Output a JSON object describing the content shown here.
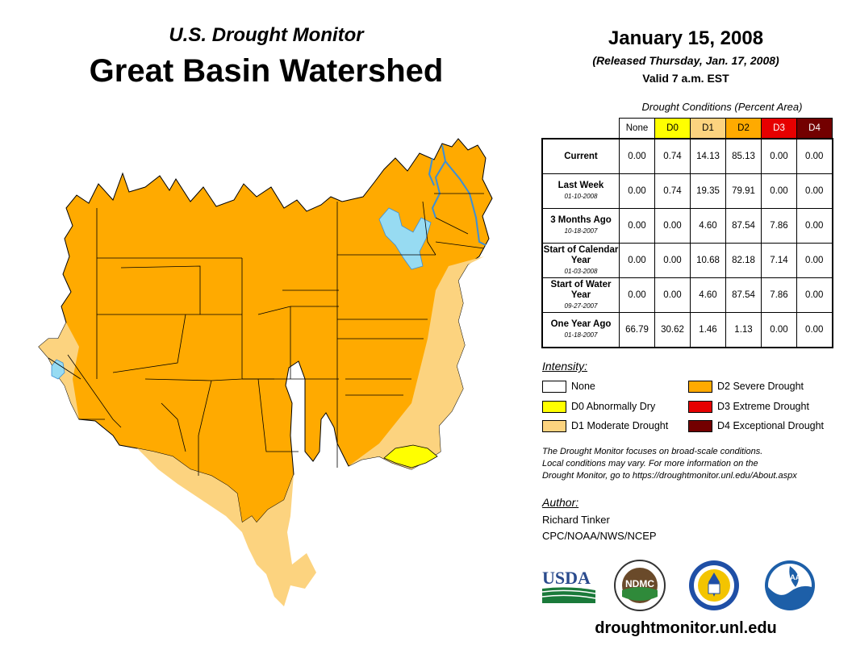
{
  "header": {
    "subtitle": "U.S. Drought Monitor",
    "title": "Great Basin Watershed",
    "date": "January 15, 2008",
    "released": "(Released Thursday, Jan. 17, 2008)",
    "valid": "Valid 7 a.m. EST"
  },
  "table": {
    "caption": "Drought Conditions (Percent Area)",
    "columns": [
      "None",
      "D0",
      "D1",
      "D2",
      "D3",
      "D4"
    ],
    "column_colors": [
      "#ffffff",
      "#ffff00",
      "#fcd37f",
      "#ffaa00",
      "#e60000",
      "#730000"
    ],
    "rows": [
      {
        "label": "Current",
        "date": "",
        "values": [
          "0.00",
          "0.74",
          "14.13",
          "85.13",
          "0.00",
          "0.00"
        ]
      },
      {
        "label": "Last Week",
        "date": "01-10-2008",
        "values": [
          "0.00",
          "0.74",
          "19.35",
          "79.91",
          "0.00",
          "0.00"
        ]
      },
      {
        "label": "3 Months Ago",
        "date": "10-18-2007",
        "values": [
          "0.00",
          "0.00",
          "4.60",
          "87.54",
          "7.86",
          "0.00"
        ]
      },
      {
        "label": "Start of Calendar Year",
        "date": "01-03-2008",
        "values": [
          "0.00",
          "0.00",
          "10.68",
          "82.18",
          "7.14",
          "0.00"
        ]
      },
      {
        "label": "Start of Water Year",
        "date": "09-27-2007",
        "values": [
          "0.00",
          "0.00",
          "4.60",
          "87.54",
          "7.86",
          "0.00"
        ]
      },
      {
        "label": "One Year Ago",
        "date": "01-18-2007",
        "values": [
          "66.79",
          "30.62",
          "1.46",
          "1.13",
          "0.00",
          "0.00"
        ]
      }
    ]
  },
  "legend": {
    "title": "Intensity:",
    "items": [
      {
        "label": "None",
        "color": "#ffffff"
      },
      {
        "label": "D0 Abnormally Dry",
        "color": "#ffff00"
      },
      {
        "label": "D1 Moderate Drought",
        "color": "#fcd37f"
      },
      {
        "label": "D2 Severe Drought",
        "color": "#ffaa00"
      },
      {
        "label": "D3 Extreme Drought",
        "color": "#e60000"
      },
      {
        "label": "D4 Exceptional Drought",
        "color": "#730000"
      }
    ]
  },
  "note": {
    "line1": "The Drought Monitor focuses on broad-scale conditions.",
    "line2": "Local conditions may vary. For more information on the",
    "line3": "Drought Monitor, go to https://droughtmonitor.unl.edu/About.aspx"
  },
  "author": {
    "label": "Author:",
    "name": "Richard Tinker",
    "org": "CPC/NOAA/NWS/NCEP"
  },
  "logos": {
    "usda": "USDA",
    "ndmc": "NDMC",
    "noaa": "NOAA"
  },
  "website": "droughtmonitor.unl.edu",
  "map_colors": {
    "d2": "#ffaa00",
    "d1": "#fcd37f",
    "d0": "#ffff00",
    "water": "#97dbf2",
    "river": "#3c8fd6"
  }
}
